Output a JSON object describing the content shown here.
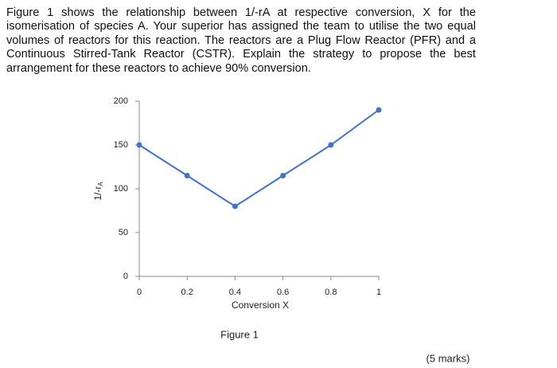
{
  "question": "Figure 1 shows the relationship between 1/-rA at respective conversion, X for the isomerisation of species A. Your superior has assigned the team to utilise the two equal volumes of reactors for this reaction. The reactors are a Plug Flow Reactor (PFR) and a Continuous Stirred-Tank Reactor (CSTR). Explain the strategy to propose the best arrangement for these reactors to achieve 90% conversion.",
  "chart_data": {
    "type": "line",
    "x_label": "Conversion X",
    "y_label": {
      "main": "1/-r",
      "sub": "A"
    },
    "x": [
      0,
      0.2,
      0.4,
      0.6,
      0.8,
      1
    ],
    "series": [
      {
        "color": "#4472c4",
        "values": [
          150,
          115,
          80,
          115,
          150,
          190
        ]
      }
    ],
    "xlim": [
      0,
      1
    ],
    "xticks": [
      0,
      0.2,
      0.4,
      0.6,
      0.8,
      1
    ],
    "ylim": [
      0,
      200
    ],
    "yticks": [
      0,
      50,
      100,
      150,
      200
    ],
    "grid": false
  },
  "caption": "Figure 1",
  "marks": "(5 marks)"
}
